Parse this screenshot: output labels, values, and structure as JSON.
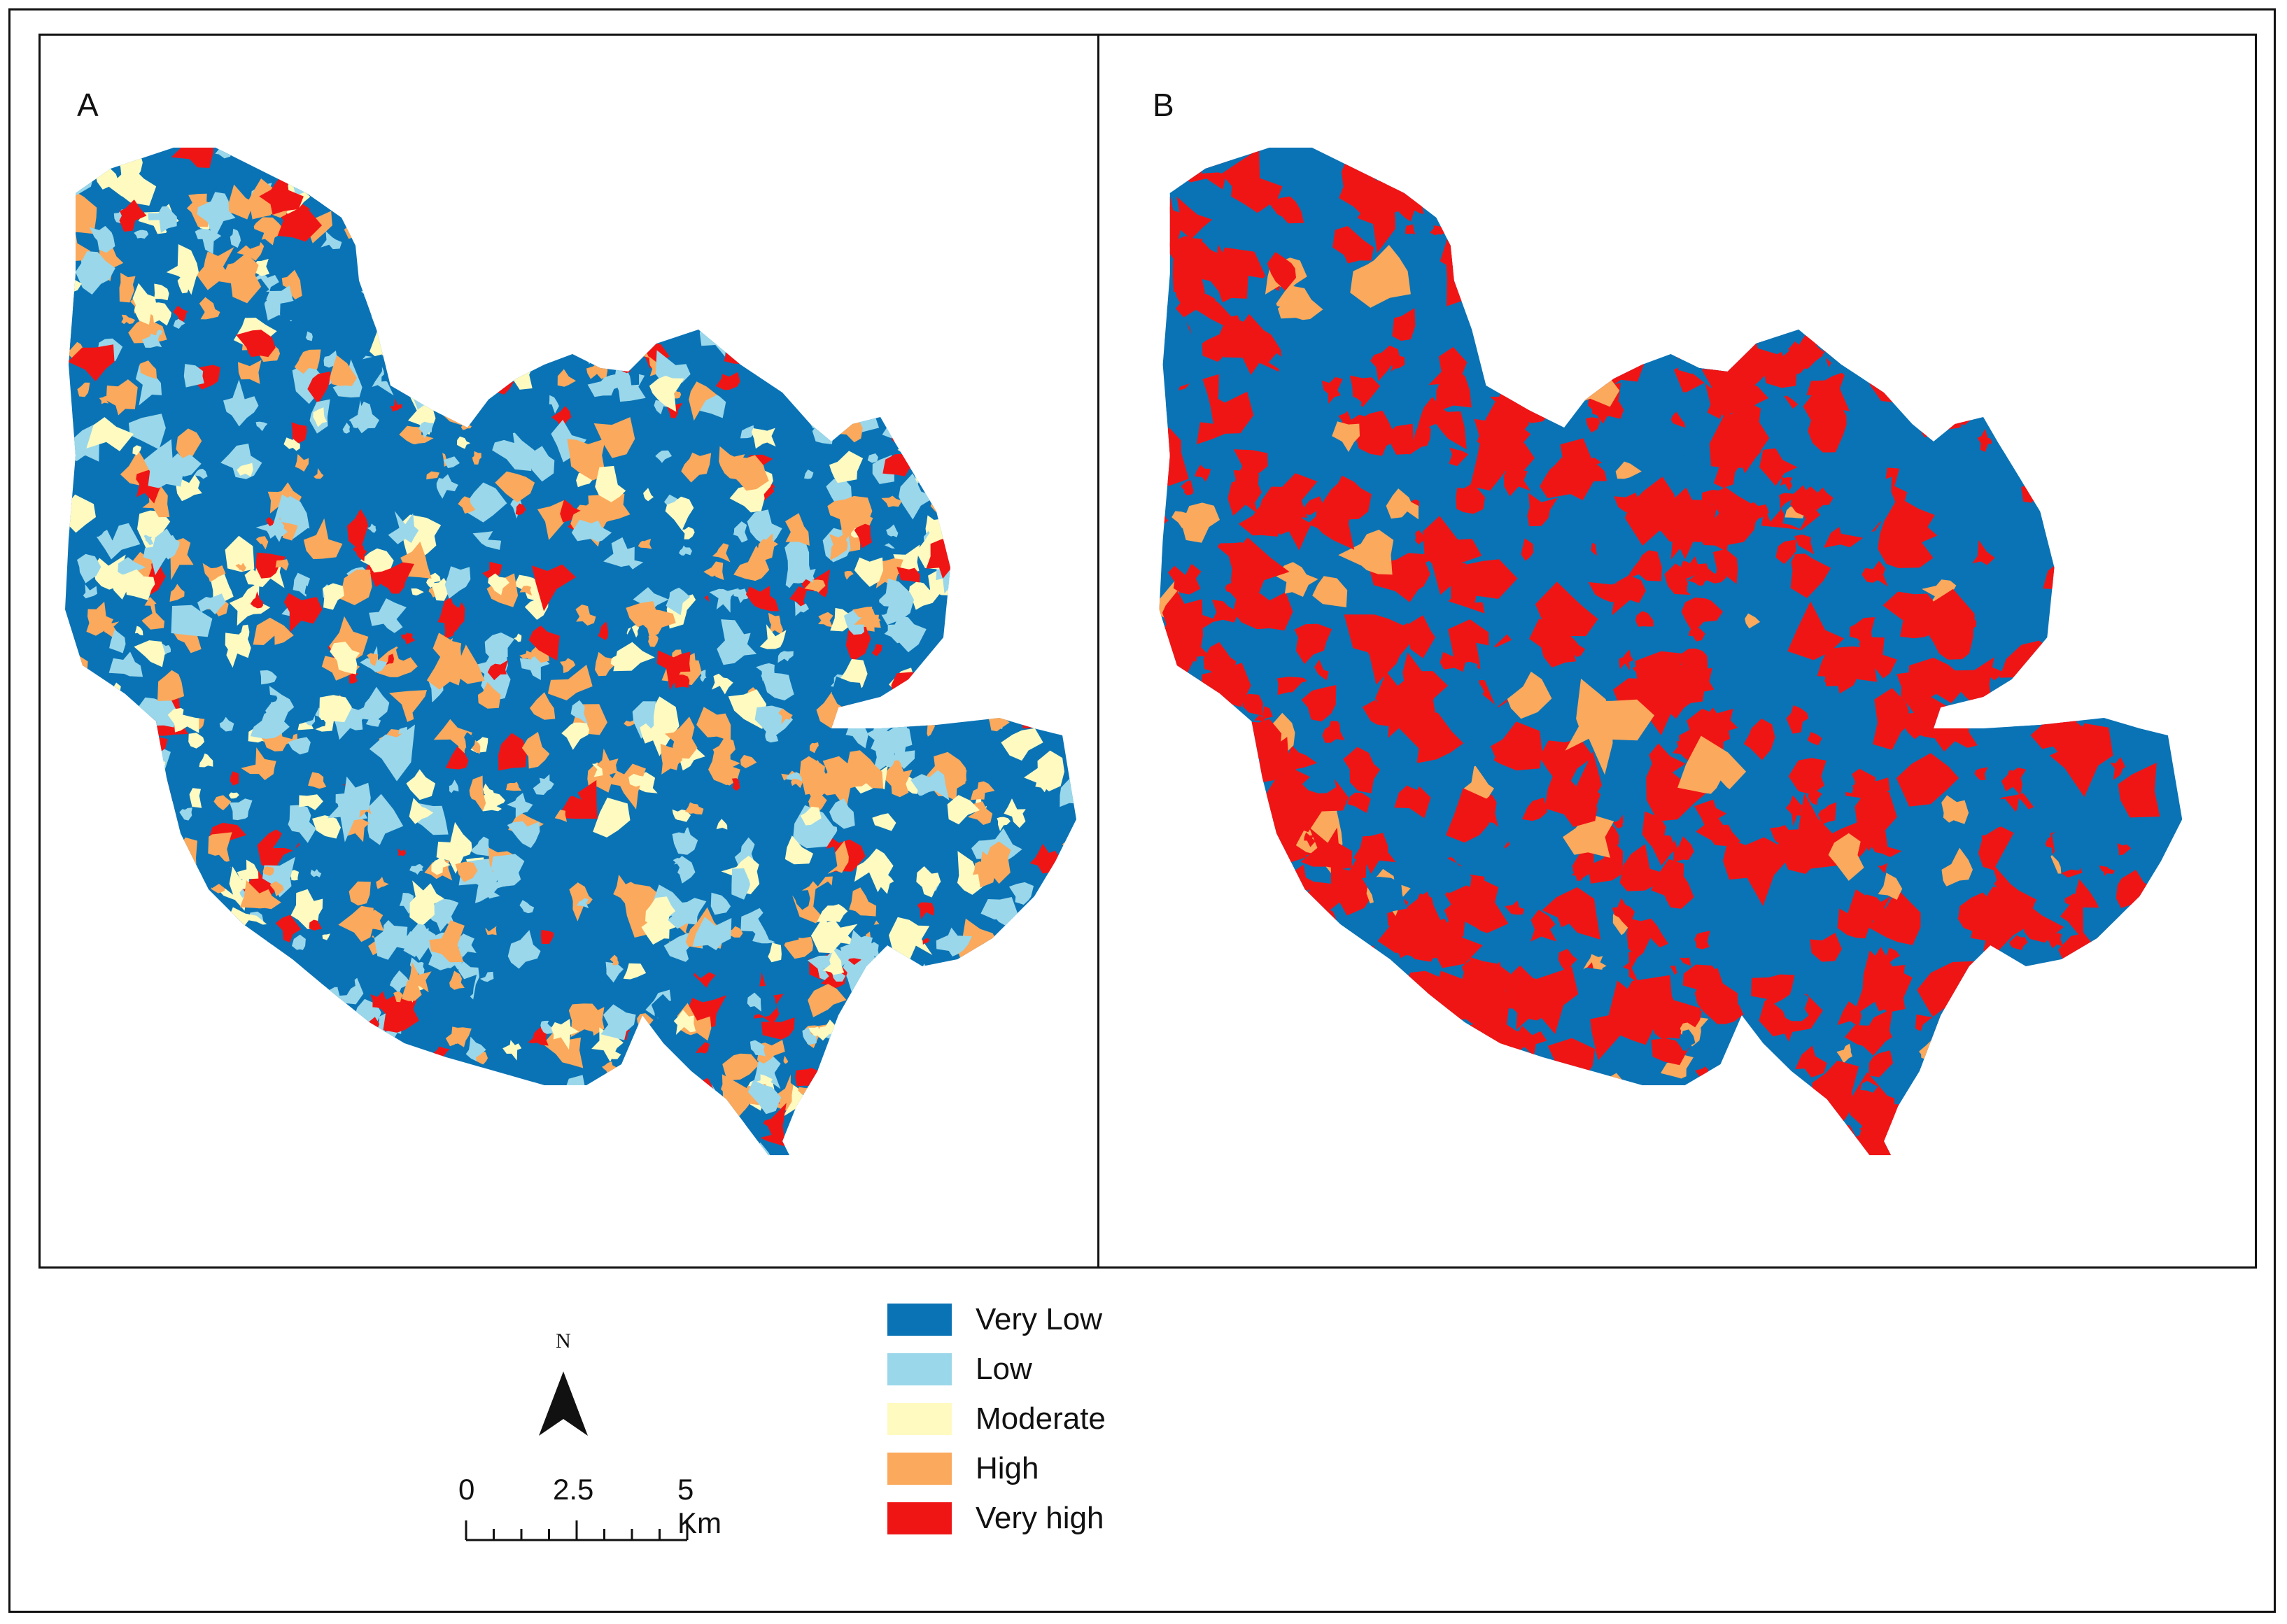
{
  "panels": [
    {
      "label": "A"
    },
    {
      "label": "B"
    }
  ],
  "legend": {
    "items": [
      {
        "label": "Very Low",
        "color": "#0a73b5"
      },
      {
        "label": "Low",
        "color": "#9ad7ea"
      },
      {
        "label": "Moderate",
        "color": "#fffac0"
      },
      {
        "label": "High",
        "color": "#fba95c"
      },
      {
        "label": "Very high",
        "color": "#f01515"
      }
    ]
  },
  "north_arrow": {
    "letter": "N"
  },
  "scale_bar": {
    "labels": [
      "0",
      "2.5",
      "5 Km"
    ]
  }
}
